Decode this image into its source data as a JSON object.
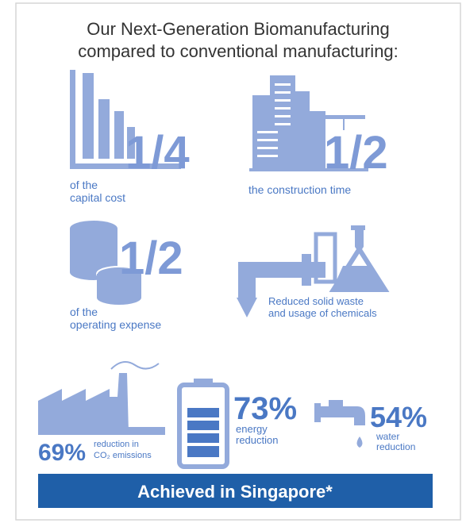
{
  "title": [
    "Our Next-Generation Biomanufacturing",
    "compared to conventional manufacturing:"
  ],
  "capital": {
    "fraction": "1/4",
    "lines": [
      "of the",
      "capital cost"
    ]
  },
  "construction": {
    "fraction": "1/2",
    "lines": [
      "the construction time"
    ]
  },
  "operating": {
    "fraction": "1/2",
    "lines": [
      "of the",
      "operating expense"
    ]
  },
  "waste": {
    "lines": [
      "Reduced solid waste",
      "and usage of chemicals"
    ]
  },
  "emissions": {
    "percent": "69%",
    "lines": [
      "reduction in",
      "CO₂ emissions"
    ]
  },
  "energy": {
    "percent": "73%",
    "lines": [
      "energy",
      "reduction"
    ]
  },
  "water": {
    "percent": "54%",
    "lines": [
      "water",
      "reduction"
    ]
  },
  "banner": "Achieved in Singapore*"
}
